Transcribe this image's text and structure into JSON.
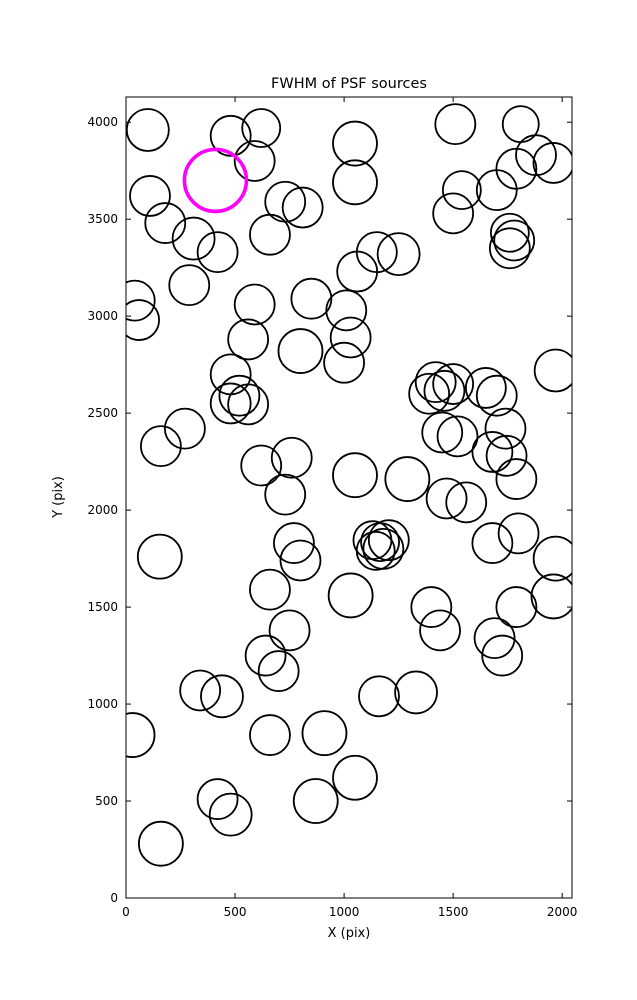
{
  "chart_data": {
    "type": "scatter",
    "title": "FWHM of PSF sources",
    "xlabel": "X (pix)",
    "ylabel": "Y (pix)",
    "xlim": [
      0,
      2045
    ],
    "ylim": [
      0,
      4130
    ],
    "xticks": [
      0,
      500,
      1000,
      1500,
      2000
    ],
    "yticks": [
      0,
      500,
      1000,
      1500,
      2000,
      2500,
      3000,
      3500,
      4000
    ],
    "grid": false,
    "legend": false,
    "marker_style": "open-circle",
    "marker_color": "#000000",
    "highlight_color": "#ff00ff",
    "sources": [
      [
        100,
        3960,
        21
      ],
      [
        480,
        3930,
        20
      ],
      [
        620,
        3970,
        19
      ],
      [
        590,
        3800,
        20
      ],
      [
        1050,
        3890,
        22
      ],
      [
        1050,
        3690,
        22
      ],
      [
        1510,
        3990,
        20
      ],
      [
        1810,
        3990,
        18
      ],
      [
        1880,
        3830,
        20
      ],
      [
        1960,
        3790,
        20
      ],
      [
        1790,
        3760,
        20
      ],
      [
        1700,
        3650,
        20
      ],
      [
        1540,
        3650,
        19
      ],
      [
        1500,
        3530,
        20
      ],
      [
        110,
        3620,
        20
      ],
      [
        180,
        3480,
        20
      ],
      [
        310,
        3400,
        21
      ],
      [
        730,
        3590,
        20
      ],
      [
        810,
        3560,
        20
      ],
      [
        660,
        3420,
        20
      ],
      [
        420,
        3330,
        20
      ],
      [
        290,
        3160,
        20
      ],
      [
        1150,
        3330,
        20
      ],
      [
        1250,
        3320,
        21
      ],
      [
        1060,
        3230,
        20
      ],
      [
        1760,
        3430,
        19
      ],
      [
        1780,
        3390,
        20
      ],
      [
        1760,
        3350,
        20
      ],
      [
        40,
        3080,
        20
      ],
      [
        60,
        2980,
        20
      ],
      [
        590,
        3060,
        20
      ],
      [
        850,
        3090,
        20
      ],
      [
        1010,
        3030,
        20
      ],
      [
        560,
        2880,
        20
      ],
      [
        800,
        2820,
        22
      ],
      [
        1030,
        2890,
        20
      ],
      [
        1000,
        2760,
        20
      ],
      [
        480,
        2700,
        20
      ],
      [
        520,
        2590,
        20
      ],
      [
        480,
        2550,
        20
      ],
      [
        560,
        2545,
        20
      ],
      [
        1970,
        2720,
        21
      ],
      [
        1420,
        2660,
        20
      ],
      [
        1500,
        2650,
        20
      ],
      [
        1460,
        2615,
        20
      ],
      [
        1390,
        2600,
        20
      ],
      [
        1650,
        2630,
        20
      ],
      [
        1700,
        2590,
        20
      ],
      [
        270,
        2420,
        20
      ],
      [
        160,
        2330,
        20
      ],
      [
        1450,
        2400,
        20
      ],
      [
        1520,
        2380,
        20
      ],
      [
        1740,
        2420,
        20
      ],
      [
        1680,
        2300,
        20
      ],
      [
        1745,
        2280,
        20
      ],
      [
        620,
        2230,
        20
      ],
      [
        760,
        2270,
        20
      ],
      [
        1050,
        2180,
        22
      ],
      [
        1290,
        2160,
        22
      ],
      [
        1790,
        2160,
        20
      ],
      [
        730,
        2080,
        20
      ],
      [
        1470,
        2060,
        20
      ],
      [
        1560,
        2040,
        20
      ],
      [
        155,
        1760,
        22
      ],
      [
        770,
        1830,
        20
      ],
      [
        800,
        1740,
        20
      ],
      [
        1130,
        1845,
        19
      ],
      [
        1165,
        1835,
        19
      ],
      [
        1205,
        1845,
        20
      ],
      [
        1180,
        1800,
        20
      ],
      [
        1145,
        1790,
        19
      ],
      [
        1680,
        1830,
        20
      ],
      [
        1800,
        1880,
        20
      ],
      [
        1970,
        1750,
        22
      ],
      [
        1960,
        1555,
        22
      ],
      [
        660,
        1590,
        20
      ],
      [
        1030,
        1560,
        22
      ],
      [
        1400,
        1500,
        20
      ],
      [
        1790,
        1500,
        20
      ],
      [
        1440,
        1380,
        20
      ],
      [
        750,
        1380,
        20
      ],
      [
        640,
        1250,
        20
      ],
      [
        1690,
        1340,
        20
      ],
      [
        1725,
        1250,
        20
      ],
      [
        700,
        1170,
        20
      ],
      [
        340,
        1070,
        20
      ],
      [
        440,
        1040,
        21
      ],
      [
        1160,
        1040,
        20
      ],
      [
        1330,
        1060,
        21
      ],
      [
        30,
        840,
        22
      ],
      [
        660,
        840,
        20
      ],
      [
        910,
        850,
        22
      ],
      [
        1050,
        620,
        22
      ],
      [
        870,
        500,
        22
      ],
      [
        420,
        510,
        20
      ],
      [
        480,
        430,
        21
      ],
      [
        160,
        280,
        22
      ]
    ],
    "highlighted_source": {
      "x": 410,
      "y": 3700,
      "r": 31
    }
  }
}
